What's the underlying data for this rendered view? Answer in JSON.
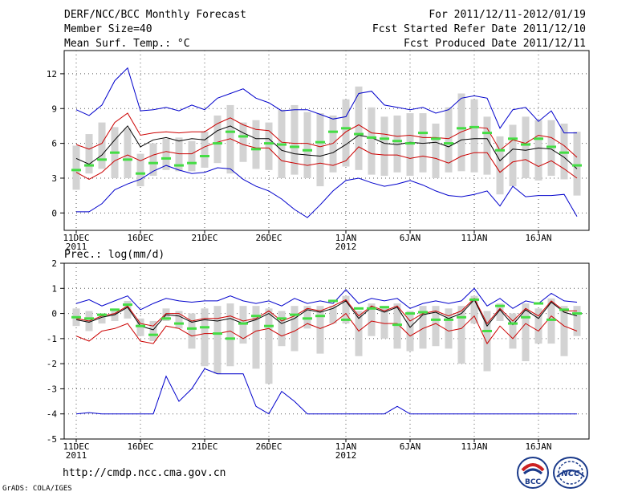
{
  "header": {
    "title": "DERF/NCC/BCC Monthly Forecast",
    "member_size": "Member Size=40",
    "variable1": "Mean Surf. Temp.: °C",
    "period": "For 2011/12/11-2012/01/19",
    "fcst_started": "Fcst Started Refer Date 2011/12/10",
    "fcst_produced": "Fcst Produced Date 2011/12/11"
  },
  "footer": {
    "url": "http://cmdp.ncc.cma.gov.cn",
    "grads": "GrADS: COLA/IGES",
    "logo_bcc": "BCC",
    "logo_ncc": "NCC"
  },
  "chart_data": [
    {
      "type": "line",
      "title": "Mean Surf. Temp.: °C",
      "ylabel": "°C",
      "ylim": [
        -1.5,
        14
      ],
      "yticks": [
        0,
        3,
        6,
        9,
        12
      ],
      "grid": true,
      "x_days": 40,
      "xticks": [
        {
          "day": 0,
          "label": "11DEC",
          "sub": "2011"
        },
        {
          "day": 5,
          "label": "16DEC",
          "sub": ""
        },
        {
          "day": 10,
          "label": "21DEC",
          "sub": ""
        },
        {
          "day": 15,
          "label": "26DEC",
          "sub": ""
        },
        {
          "day": 21,
          "label": "1JAN",
          "sub": "2012"
        },
        {
          "day": 26,
          "label": "6JAN",
          "sub": ""
        },
        {
          "day": 31,
          "label": "11JAN",
          "sub": ""
        },
        {
          "day": 36,
          "label": "16JAN",
          "sub": ""
        }
      ],
      "series": [
        {
          "name": "maximum",
          "color": "#0000cc",
          "values": [
            8.9,
            8.4,
            9.3,
            11.4,
            12.5,
            8.8,
            8.9,
            9.1,
            8.8,
            9.3,
            8.9,
            9.9,
            10.3,
            10.7,
            9.9,
            9.5,
            8.8,
            8.9,
            8.9,
            8.5,
            8.1,
            8.3,
            10.3,
            10.5,
            9.3,
            9.1,
            8.9,
            9.1,
            8.6,
            8.9,
            9.9,
            10.1,
            9.9,
            7.3,
            8.9,
            9.1,
            7.9,
            8.8,
            6.9,
            6.9
          ]
        },
        {
          "name": "upper",
          "color": "#cc0000",
          "values": [
            5.9,
            5.5,
            6.0,
            7.8,
            8.6,
            6.7,
            6.9,
            7.0,
            6.9,
            7.0,
            7.0,
            7.7,
            8.2,
            7.6,
            7.2,
            7.1,
            6.1,
            6.0,
            6.0,
            5.7,
            6.0,
            7.0,
            7.6,
            6.9,
            6.8,
            6.6,
            6.7,
            6.5,
            6.5,
            6.4,
            7.0,
            7.4,
            7.3,
            5.4,
            6.3,
            6.0,
            6.7,
            6.5,
            5.8,
            4.8
          ]
        },
        {
          "name": "ensemble mean",
          "color": "#000000",
          "values": [
            4.7,
            4.2,
            5.0,
            6.3,
            7.5,
            5.7,
            6.3,
            6.5,
            6.2,
            6.4,
            6.3,
            7.1,
            7.5,
            6.9,
            6.4,
            6.4,
            5.4,
            5.1,
            5.0,
            4.9,
            5.2,
            5.9,
            6.7,
            6.5,
            6.0,
            5.9,
            6.1,
            6.0,
            6.1,
            5.7,
            6.3,
            6.4,
            6.4,
            4.5,
            5.5,
            5.4,
            5.6,
            5.5,
            4.8,
            3.8
          ]
        },
        {
          "name": "lower",
          "color": "#cc0000",
          "values": [
            3.5,
            2.9,
            3.5,
            4.5,
            5.0,
            4.5,
            5.0,
            5.3,
            5.1,
            5.1,
            5.7,
            6.1,
            6.4,
            5.9,
            5.6,
            5.6,
            4.5,
            4.3,
            4.1,
            4.3,
            4.1,
            4.5,
            5.7,
            5.1,
            5.0,
            5.0,
            4.7,
            4.9,
            4.7,
            4.3,
            4.9,
            5.2,
            5.2,
            3.5,
            4.4,
            4.6,
            4.0,
            4.5,
            3.8,
            3.0
          ]
        },
        {
          "name": "minimum",
          "color": "#0000cc",
          "values": [
            0.1,
            0.1,
            0.8,
            2.0,
            2.5,
            2.9,
            3.6,
            4.1,
            3.7,
            3.4,
            3.5,
            3.9,
            3.8,
            2.9,
            2.3,
            1.9,
            1.2,
            0.3,
            -0.4,
            0.7,
            1.9,
            2.8,
            3.0,
            2.6,
            2.3,
            2.5,
            2.8,
            2.4,
            1.9,
            1.5,
            1.4,
            1.6,
            1.9,
            0.6,
            2.3,
            1.4,
            1.5,
            1.5,
            1.6,
            -0.3
          ]
        }
      ],
      "box_bottom": [
        2.0,
        3.4,
        3.8,
        3.0,
        3.0,
        2.3,
        3.2,
        3.7,
        3.6,
        3.6,
        3.9,
        4.3,
        3.4,
        4.4,
        3.8,
        3.7,
        3.0,
        3.3,
        3.0,
        2.3,
        3.5,
        4.0,
        3.7,
        3.3,
        3.2,
        3.5,
        3.2,
        3.5,
        3.0,
        3.5,
        3.6,
        3.5,
        3.3,
        1.6,
        2.3,
        3.0,
        2.8,
        3.2,
        2.9,
        1.5
      ],
      "box_top": [
        5.8,
        6.8,
        7.8,
        7.4,
        7.3,
        5.1,
        6.0,
        6.4,
        6.5,
        6.2,
        7.0,
        8.4,
        9.3,
        7.8,
        8.0,
        7.8,
        8.9,
        9.3,
        8.7,
        8.6,
        8.4,
        9.8,
        10.9,
        9.1,
        8.3,
        8.4,
        8.6,
        8.6,
        7.7,
        9.1,
        10.3,
        9.8,
        8.3,
        6.6,
        7.6,
        8.3,
        8.0,
        8.0,
        7.7,
        7.0
      ],
      "climatology": [
        3.7,
        4.1,
        4.6,
        5.2,
        4.6,
        3.4,
        4.3,
        4.7,
        4.1,
        4.3,
        4.9,
        6.0,
        7.0,
        6.6,
        5.5,
        6.0,
        5.9,
        5.7,
        5.4,
        6.1,
        7.0,
        7.3,
        6.8,
        6.5,
        6.4,
        6.2,
        6.0,
        6.9,
        6.4,
        6.0,
        7.3,
        7.4,
        6.9,
        5.4,
        6.4,
        5.9,
        6.4,
        5.7,
        5.2,
        4.1
      ]
    },
    {
      "type": "line",
      "title": "Prec.: log(mm/d)",
      "ylabel": "log(mm/d)",
      "ylim": [
        -5,
        2
      ],
      "yticks": [
        -5,
        -4,
        -3,
        -2,
        -1,
        0,
        1,
        2
      ],
      "grid": true,
      "x_days": 40,
      "xticks": [
        {
          "day": 0,
          "label": "11DEC",
          "sub": "2011"
        },
        {
          "day": 5,
          "label": "16DEC",
          "sub": ""
        },
        {
          "day": 10,
          "label": "21DEC",
          "sub": ""
        },
        {
          "day": 15,
          "label": "26DEC",
          "sub": ""
        },
        {
          "day": 21,
          "label": "1JAN",
          "sub": "2012"
        },
        {
          "day": 26,
          "label": "6JAN",
          "sub": ""
        },
        {
          "day": 31,
          "label": "11JAN",
          "sub": ""
        },
        {
          "day": 36,
          "label": "16JAN",
          "sub": ""
        }
      ],
      "series": [
        {
          "name": "maximum",
          "color": "#0000cc",
          "values": [
            0.4,
            0.55,
            0.3,
            0.5,
            0.7,
            0.15,
            0.4,
            0.6,
            0.5,
            0.45,
            0.5,
            0.5,
            0.7,
            0.5,
            0.4,
            0.5,
            0.3,
            0.6,
            0.4,
            0.5,
            0.4,
            0.95,
            0.4,
            0.6,
            0.5,
            0.6,
            0.2,
            0.4,
            0.5,
            0.4,
            0.5,
            1.0,
            0.3,
            0.6,
            0.2,
            0.5,
            0.4,
            0.8,
            0.5,
            0.45
          ]
        },
        {
          "name": "upper",
          "color": "#cc0000",
          "values": [
            -0.2,
            -0.3,
            -0.1,
            0.0,
            0.3,
            -0.4,
            -0.5,
            0.0,
            0.0,
            -0.3,
            -0.2,
            -0.2,
            -0.1,
            -0.3,
            -0.2,
            0.1,
            -0.3,
            -0.1,
            0.2,
            0.1,
            0.3,
            0.55,
            -0.1,
            0.3,
            0.1,
            0.3,
            -0.3,
            0.0,
            0.1,
            -0.1,
            0.1,
            0.6,
            -0.4,
            0.2,
            -0.3,
            0.2,
            -0.1,
            0.5,
            0.1,
            0.1
          ]
        },
        {
          "name": "ensemble mean",
          "color": "#000000",
          "values": [
            -0.25,
            -0.35,
            -0.15,
            -0.05,
            0.25,
            -0.5,
            -0.65,
            -0.05,
            -0.1,
            -0.35,
            -0.25,
            -0.3,
            -0.2,
            -0.4,
            -0.25,
            0.0,
            -0.4,
            -0.2,
            0.15,
            0.05,
            0.2,
            0.5,
            -0.2,
            0.25,
            0.05,
            0.25,
            -0.55,
            -0.05,
            0.05,
            -0.2,
            0.0,
            0.55,
            -0.5,
            0.15,
            -0.45,
            0.15,
            -0.2,
            0.45,
            0.05,
            -0.1
          ]
        },
        {
          "name": "lower",
          "color": "#cc0000",
          "values": [
            -0.9,
            -1.1,
            -0.7,
            -0.6,
            -0.4,
            -1.1,
            -1.2,
            -0.5,
            -0.6,
            -0.9,
            -0.8,
            -0.8,
            -0.7,
            -1.0,
            -0.7,
            -0.6,
            -0.9,
            -0.7,
            -0.4,
            -0.6,
            -0.4,
            0.0,
            -0.7,
            -0.3,
            -0.4,
            -0.4,
            -0.9,
            -0.6,
            -0.4,
            -0.7,
            -0.6,
            -0.1,
            -1.2,
            -0.5,
            -1.0,
            -0.4,
            -0.7,
            -0.1,
            -0.5,
            -0.7
          ]
        },
        {
          "name": "minimum",
          "color": "#0000cc",
          "values": [
            -4.0,
            -3.95,
            -4.0,
            -4.0,
            -4.0,
            -4.0,
            -4.0,
            -2.5,
            -3.5,
            -3.0,
            -2.2,
            -2.4,
            -2.4,
            -2.4,
            -3.7,
            -4.0,
            -3.1,
            -3.5,
            -4.0,
            -4.0,
            -4.0,
            -4.0,
            -4.0,
            -4.0,
            -4.0,
            -3.7,
            -4.0,
            -4.0,
            -4.0,
            -4.0,
            -4.0,
            -4.0,
            -4.0,
            -4.0,
            -4.0,
            -4.0,
            -4.0,
            -4.0,
            -4.0,
            -4.0
          ]
        }
      ],
      "box_bottom": [
        -0.5,
        -0.7,
        -0.4,
        -0.3,
        -0.2,
        -0.9,
        -1.1,
        -0.3,
        -0.6,
        -1.4,
        -2.1,
        -2.4,
        -2.1,
        -1.2,
        -2.2,
        -2.8,
        -1.3,
        -1.5,
        -0.6,
        -1.6,
        -0.4,
        -0.4,
        -1.7,
        -0.9,
        -1.0,
        -1.4,
        -1.5,
        -1.4,
        -1.3,
        -1.4,
        -2.0,
        -0.4,
        -2.3,
        -0.3,
        -1.4,
        -1.9,
        -1.2,
        -1.2,
        -1.7,
        -0.9
      ],
      "box_top": [
        0.2,
        0.1,
        0.0,
        0.2,
        0.5,
        -0.2,
        -0.3,
        0.2,
        0.1,
        0.0,
        0.2,
        0.3,
        0.4,
        0.3,
        0.3,
        0.2,
        0.1,
        0.3,
        0.3,
        0.3,
        0.3,
        0.7,
        0.1,
        0.4,
        0.3,
        0.4,
        0.1,
        0.3,
        0.3,
        0.2,
        0.3,
        0.7,
        0.1,
        0.4,
        0.0,
        0.4,
        0.2,
        0.6,
        0.3,
        0.3
      ],
      "climatology": [
        -0.15,
        -0.2,
        -0.05,
        0.15,
        0.35,
        -0.5,
        -0.85,
        -0.2,
        -0.4,
        -0.6,
        -0.55,
        -0.8,
        -1.0,
        -0.4,
        -0.1,
        -0.5,
        -0.2,
        -0.05,
        -0.2,
        -0.1,
        0.5,
        -0.25,
        0.2,
        0.2,
        0.25,
        -0.45,
        0.0,
        0.05,
        -0.25,
        -0.25,
        -0.15,
        0.55,
        -0.7,
        0.3,
        -0.4,
        -0.15,
        0.4,
        -0.25,
        0.15,
        0.0
      ]
    }
  ]
}
